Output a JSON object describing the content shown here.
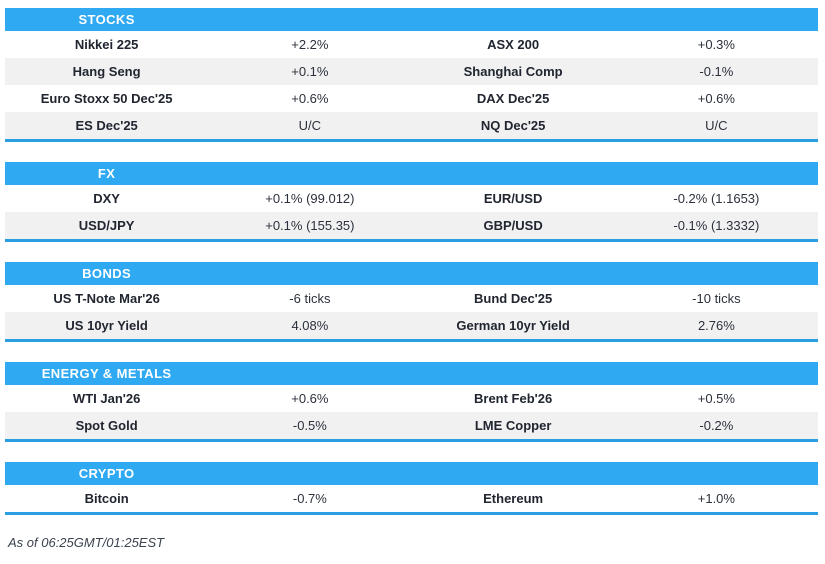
{
  "colors": {
    "header_bg": "#2FA9F1",
    "table_bottom_border": "#2B9EE3",
    "row_alt_bg": "#F1F1F2",
    "label_text": "#20252F",
    "value_text": "#2B303A",
    "footer_text": "#3B434E",
    "header_text": "#FFFFFF"
  },
  "chart_data": [
    {
      "type": "table",
      "title": "STOCKS",
      "rows": [
        [
          "Nikkei 225",
          "+2.2%",
          "ASX 200",
          "+0.3%"
        ],
        [
          "Hang Seng",
          "+0.1%",
          "Shanghai Comp",
          "-0.1%"
        ],
        [
          "Euro Stoxx 50 Dec'25",
          "+0.6%",
          "DAX Dec'25",
          "+0.6%"
        ],
        [
          "ES Dec'25",
          "U/C",
          "NQ Dec'25",
          "U/C"
        ]
      ]
    },
    {
      "type": "table",
      "title": "FX",
      "rows": [
        [
          "DXY",
          "+0.1% (99.012)",
          "EUR/USD",
          "-0.2% (1.1653)"
        ],
        [
          "USD/JPY",
          "+0.1% (155.35)",
          "GBP/USD",
          "-0.1% (1.3332)"
        ]
      ]
    },
    {
      "type": "table",
      "title": "BONDS",
      "rows": [
        [
          "US T-Note Mar'26",
          "-6 ticks",
          "Bund Dec'25",
          "-10 ticks"
        ],
        [
          "US 10yr Yield",
          "4.08%",
          "German 10yr Yield",
          "2.76%"
        ]
      ]
    },
    {
      "type": "table",
      "title": "ENERGY & METALS",
      "rows": [
        [
          "WTI Jan'26",
          "+0.6%",
          "Brent Feb'26",
          "+0.5%"
        ],
        [
          "Spot Gold",
          "-0.5%",
          "LME Copper",
          "-0.2%"
        ]
      ]
    },
    {
      "type": "table",
      "title": "CRYPTO",
      "rows": [
        [
          "Bitcoin",
          "-0.7%",
          "Ethereum",
          "+1.0%"
        ]
      ]
    }
  ],
  "footer": {
    "as_of": "As of 06:25GMT/01:25EST"
  }
}
